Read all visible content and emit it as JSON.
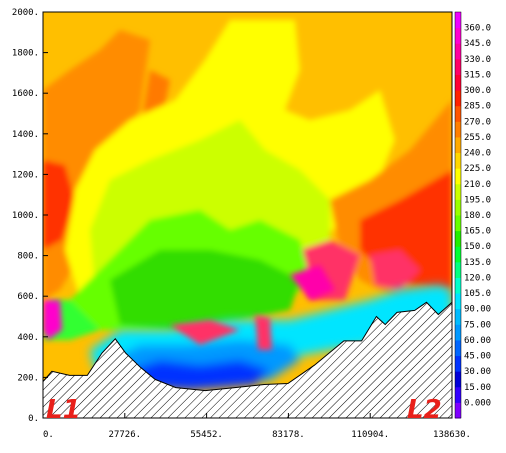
{
  "chart_data": {
    "type": "heatmap",
    "title": "",
    "xlabel": "",
    "ylabel": "",
    "x_ticks": [
      "0.",
      "27726.",
      "55452.",
      "83178.",
      "110904.",
      "138630."
    ],
    "x_tick_values": [
      0,
      27726,
      55452,
      83178,
      110904,
      138630
    ],
    "y_ticks": [
      "0.",
      "200.",
      "400.",
      "600.",
      "800.",
      "1000.",
      "1200.",
      "1400.",
      "1600.",
      "1800.",
      "2000."
    ],
    "y_tick_values": [
      0,
      200,
      400,
      600,
      800,
      1000,
      1200,
      1400,
      1600,
      1800,
      2000
    ],
    "xlim": [
      0,
      138630
    ],
    "ylim": [
      0,
      2000
    ],
    "colorbar": {
      "labels": [
        "0.000",
        "15.00",
        "30.00",
        "45.00",
        "60.00",
        "75.00",
        "90.00",
        "105.0",
        "120.0",
        "135.0",
        "150.0",
        "165.0",
        "180.0",
        "195.0",
        "210.0",
        "225.0",
        "240.0",
        "255.0",
        "270.0",
        "285.0",
        "300.0",
        "315.0",
        "330.0",
        "345.0",
        "360.0"
      ],
      "colors": [
        "#7f00ff",
        "#3300ff",
        "#0000d8",
        "#0033ff",
        "#0066ff",
        "#0099ff",
        "#00bbff",
        "#00e5ff",
        "#00ffcc",
        "#00ff80",
        "#00ff33",
        "#22ee00",
        "#66ff00",
        "#99ff00",
        "#ccff00",
        "#ffff00",
        "#ffd700",
        "#ffaa00",
        "#ff7f00",
        "#ff5500",
        "#ff2200",
        "#ff0033",
        "#ff0066",
        "#ff00a0",
        "#ff00d0",
        "#ee00ff"
      ]
    },
    "terrain_x": [
      0,
      3000,
      9000,
      15000,
      20000,
      24500,
      28000,
      33000,
      38000,
      45000,
      55000,
      65000,
      75000,
      83000,
      92000,
      102000,
      108000,
      113000,
      116000,
      120000,
      126000,
      130000,
      134000,
      138630
    ],
    "terrain_y": [
      180,
      230,
      210,
      210,
      320,
      390,
      320,
      250,
      190,
      150,
      135,
      150,
      165,
      170,
      260,
      380,
      380,
      500,
      460,
      520,
      530,
      570,
      510,
      570
    ],
    "annotations": [
      "L1",
      "L2"
    ]
  }
}
